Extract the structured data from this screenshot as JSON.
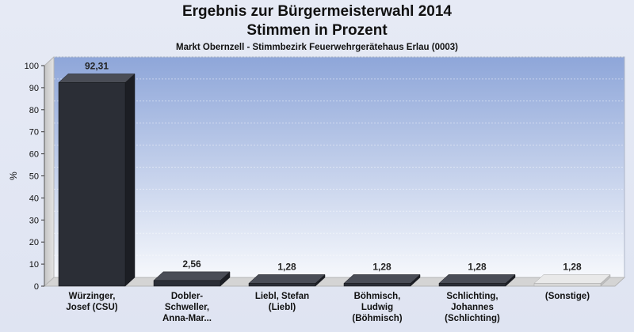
{
  "chart_data": {
    "type": "bar",
    "title": "Ergebnis zur Bürgermeisterwahl 2014",
    "title_line2": "Stimmen in Prozent",
    "subtitle": "Markt Obernzell - Stimmbezirk Feuerwehrgerätehaus Erlau (0003)",
    "xlabel": "",
    "ylabel": "%",
    "ylim": [
      0,
      100
    ],
    "yticks": [
      0,
      10,
      20,
      30,
      40,
      50,
      60,
      70,
      80,
      90,
      100
    ],
    "grid": true,
    "categories": [
      [
        "Würzinger,",
        "Josef (CSU)"
      ],
      [
        "Dobler-",
        "Schweller,",
        "Anna-Mar..."
      ],
      [
        "Liebl, Stefan",
        "(Liebl)"
      ],
      [
        "Böhmisch,",
        "Ludwig",
        "(Böhmisch)"
      ],
      [
        "Schlichting,",
        "Johannes",
        "(Schlichting)"
      ],
      [
        "(Sonstige)"
      ]
    ],
    "values": [
      92.31,
      2.56,
      1.28,
      1.28,
      1.28,
      1.28
    ],
    "value_labels": [
      "92,31",
      "2,56",
      "1,28",
      "1,28",
      "1,28",
      "1,28"
    ],
    "bar_colors": [
      "#2b2e36",
      "#2b2e36",
      "#2b2e36",
      "#2b2e36",
      "#2b2e36",
      "#d8d8d8"
    ]
  }
}
